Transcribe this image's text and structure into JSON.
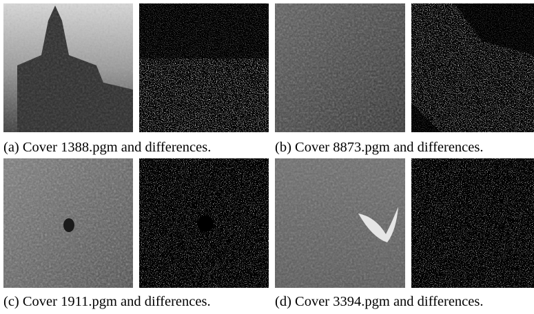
{
  "figure": {
    "panels": [
      {
        "caption": "(a) Cover 1388.pgm and differences."
      },
      {
        "caption": "(b) Cover 8873.pgm and differences."
      },
      {
        "caption": "(c) Cover 1911.pgm and differences."
      },
      {
        "caption": "(d) Cover 3394.pgm and differences."
      }
    ]
  }
}
